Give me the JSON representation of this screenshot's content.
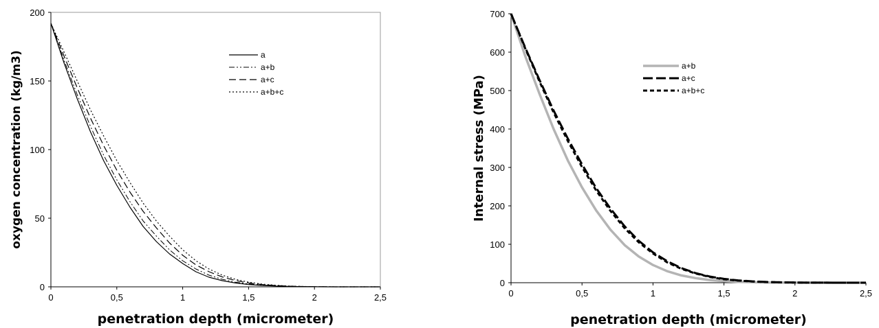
{
  "chart_data": [
    {
      "type": "line",
      "title": "",
      "xlabel": "penetration depth (micrometer)",
      "ylabel": "oxygen concentration (kg/m3)",
      "xlim": [
        0,
        2.5
      ],
      "ylim": [
        0,
        200
      ],
      "x_ticks": [
        "0",
        "0,5",
        "1",
        "1,5",
        "2",
        "2,5"
      ],
      "y_ticks": [
        "0",
        "50",
        "100",
        "150",
        "200"
      ],
      "grid": false,
      "legend_position": "top-right",
      "x": [
        0,
        0.1,
        0.2,
        0.3,
        0.4,
        0.5,
        0.6,
        0.7,
        0.8,
        0.9,
        1.0,
        1.1,
        1.2,
        1.3,
        1.4,
        1.5,
        1.6,
        1.7,
        1.8,
        1.9,
        2.0,
        2.1,
        2.2,
        2.3,
        2.4,
        2.5
      ],
      "series": [
        {
          "name": "a",
          "style": "solid",
          "color": "#000000",
          "values": [
            192,
            163,
            137,
            113,
            92,
            74,
            58,
            44,
            33,
            24,
            17,
            11,
            7,
            4.5,
            2.8,
            1.7,
            1.0,
            0.6,
            0.3,
            0.15,
            0.05,
            0.02,
            0,
            0,
            0,
            0
          ]
        },
        {
          "name": "a+b",
          "style": "dashdotdot",
          "color": "#000000",
          "values": [
            192,
            165,
            140,
            117,
            96,
            78,
            62,
            48,
            37,
            27,
            19,
            13,
            8.5,
            5.5,
            3.4,
            2.1,
            1.3,
            0.8,
            0.4,
            0.2,
            0.08,
            0.03,
            0,
            0,
            0,
            0
          ]
        },
        {
          "name": "a+c",
          "style": "dashed",
          "color": "#000000",
          "values": [
            192,
            168,
            145,
            123,
            103,
            85,
            69,
            55,
            43,
            32,
            23,
            16,
            11,
            7.2,
            4.6,
            2.8,
            1.7,
            1.0,
            0.5,
            0.25,
            0.1,
            0.04,
            0,
            0,
            0,
            0
          ]
        },
        {
          "name": "a+b+c",
          "style": "dotted",
          "color": "#000000",
          "values": [
            192,
            171,
            150,
            129,
            110,
            92,
            76,
            61,
            48,
            37,
            27,
            19,
            13,
            8.5,
            5.5,
            3.4,
            2.0,
            1.2,
            0.6,
            0.3,
            0.12,
            0.05,
            0,
            0,
            0,
            0
          ]
        }
      ]
    },
    {
      "type": "line",
      "title": "",
      "xlabel": "penetration depth (micrometer)",
      "ylabel": "Internal stress (MPa)",
      "xlim": [
        0,
        2.5
      ],
      "ylim": [
        0,
        700
      ],
      "x_ticks": [
        "0",
        "0,5",
        "1",
        "1,5",
        "2",
        "2,5"
      ],
      "y_ticks": [
        "0",
        "100",
        "200",
        "300",
        "400",
        "500",
        "600",
        "700"
      ],
      "grid": false,
      "legend_position": "top-right",
      "x": [
        0,
        0.1,
        0.2,
        0.3,
        0.4,
        0.5,
        0.6,
        0.7,
        0.8,
        0.9,
        1.0,
        1.1,
        1.2,
        1.3,
        1.4,
        1.5,
        1.6,
        1.7,
        1.8,
        1.9,
        2.0,
        2.1,
        2.2,
        2.3,
        2.4,
        2.5
      ],
      "series": [
        {
          "name": "a+b",
          "style": "solid-thick",
          "color": "#b4b4b4",
          "values": [
            700,
            590,
            492,
            400,
            318,
            248,
            188,
            138,
            98,
            68,
            46,
            30,
            19,
            12,
            7,
            4,
            2.2,
            1.2,
            0.6,
            0.3,
            0.1,
            0.05,
            0,
            0,
            0,
            0
          ]
        },
        {
          "name": "a+c",
          "style": "longdash",
          "color": "#000000",
          "values": [
            700,
            612,
            528,
            448,
            375,
            308,
            246,
            193,
            147,
            109,
            79,
            56,
            38,
            25,
            16,
            10,
            6,
            3.5,
            2,
            1,
            0.5,
            0.2,
            0.1,
            0,
            0,
            0
          ]
        },
        {
          "name": "a+b+c",
          "style": "shortdash",
          "color": "#000000",
          "values": [
            700,
            610,
            524,
            443,
            369,
            301,
            240,
            187,
            142,
            105,
            76,
            53,
            36,
            24,
            15,
            9,
            5.5,
            3.2,
            1.8,
            0.9,
            0.4,
            0.2,
            0.1,
            0,
            0,
            0
          ]
        }
      ]
    }
  ]
}
